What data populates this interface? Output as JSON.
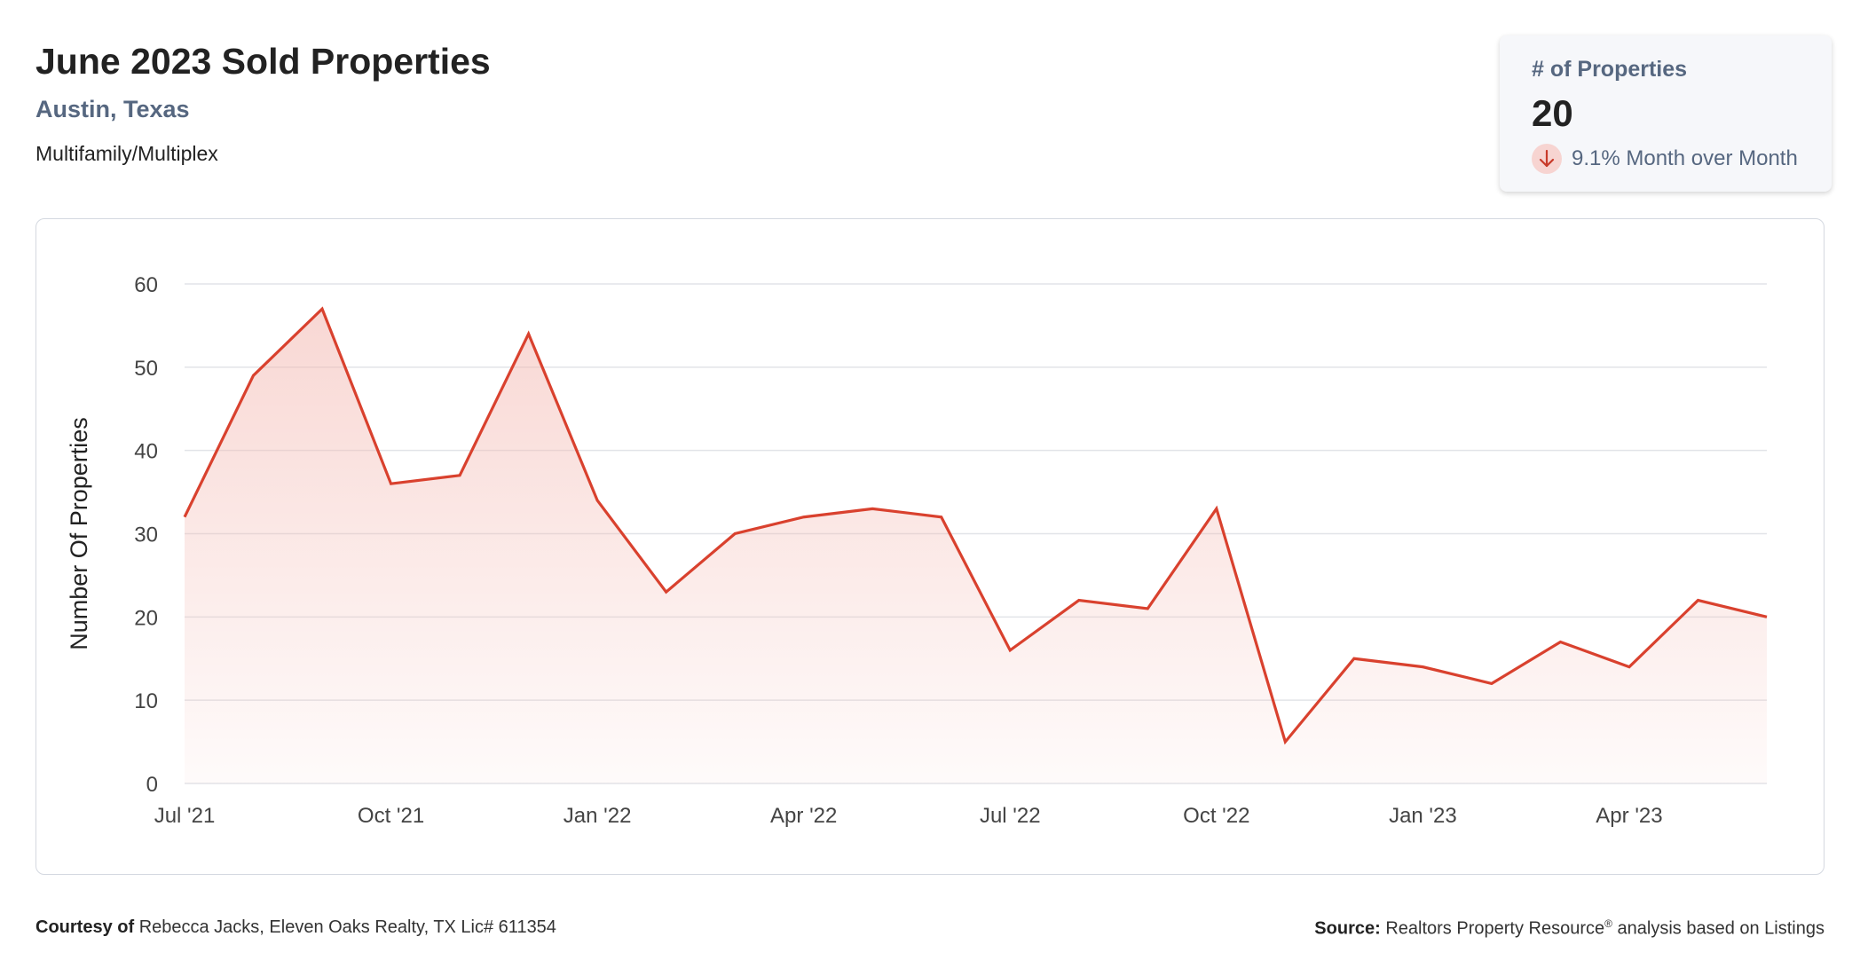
{
  "header": {
    "title": "June 2023 Sold Properties",
    "location": "Austin, Texas",
    "property_type": "Multifamily/Multiplex"
  },
  "kpi": {
    "label": "# of Properties",
    "value": "20",
    "change_text": "9.1% Month over Month",
    "direction": "down",
    "icon": "arrow-down-icon"
  },
  "colors": {
    "line": "#d9412e",
    "fill": "#f3b7b0",
    "grid": "#e2e4e8",
    "axis_text": "#444444",
    "accent_text": "#566780"
  },
  "chart_data": {
    "type": "area",
    "title": "",
    "xlabel": "",
    "ylabel": "Number Of Properties",
    "x": [
      "Jul '21",
      "Aug '21",
      "Sep '21",
      "Oct '21",
      "Nov '21",
      "Dec '21",
      "Jan '22",
      "Feb '22",
      "Mar '22",
      "Apr '22",
      "May '22",
      "Jun '22",
      "Jul '22",
      "Aug '22",
      "Sep '22",
      "Oct '22",
      "Nov '22",
      "Dec '22",
      "Jan '23",
      "Feb '23",
      "Mar '23",
      "Apr '23",
      "May '23",
      "Jun '23"
    ],
    "series": [
      {
        "values": [
          32,
          49,
          57,
          36,
          37,
          54,
          34,
          23,
          30,
          32,
          33,
          32,
          16,
          22,
          21,
          33,
          5,
          15,
          14,
          12,
          17,
          14,
          22,
          20
        ]
      }
    ],
    "x_tick_labels": [
      "Jul '21",
      "Oct '21",
      "Jan '22",
      "Apr '22",
      "Jul '22",
      "Oct '22",
      "Jan '23",
      "Apr '23"
    ],
    "x_tick_indices": [
      0,
      3,
      6,
      9,
      12,
      15,
      18,
      21
    ],
    "y_ticks": [
      0,
      10,
      20,
      30,
      40,
      50,
      60
    ],
    "ylim": [
      0,
      60
    ],
    "grid": true,
    "legend": "none"
  },
  "footer": {
    "courtesy_label": "Courtesy of",
    "courtesy_text": "Rebecca Jacks, Eleven Oaks Realty, TX Lic# 611354",
    "source_label": "Source:",
    "source_text_a": "Realtors Property Resource",
    "source_reg": "®",
    "source_text_b": "analysis based on Listings"
  }
}
